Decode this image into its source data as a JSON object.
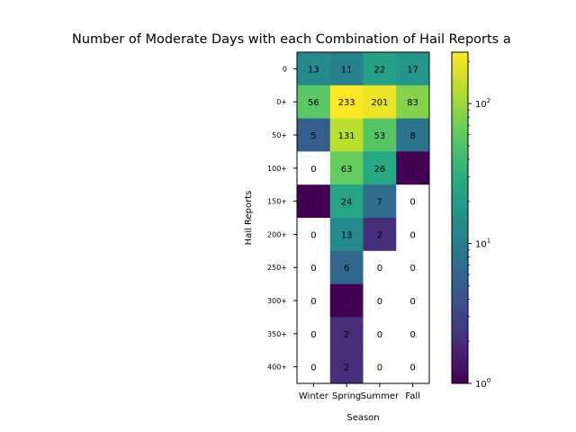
{
  "chart_data": {
    "type": "heatmap",
    "title": "Number of Moderate Days with each Combination of Hail Reports a",
    "xlabel": "Season",
    "ylabel": "Hail Reports",
    "x_categories": [
      "Winter",
      "Spring",
      "Summer",
      "Fall"
    ],
    "y_categories": [
      "0",
      "0+",
      "50+",
      "100+",
      "150+",
      "200+",
      "250+",
      "300+",
      "350+",
      "400+"
    ],
    "values": [
      [
        13,
        11,
        22,
        17
      ],
      [
        56,
        233,
        201,
        83
      ],
      [
        5,
        131,
        53,
        8
      ],
      [
        0,
        63,
        26,
        1
      ],
      [
        1,
        24,
        7,
        0
      ],
      [
        0,
        13,
        2,
        0
      ],
      [
        0,
        6,
        0,
        0
      ],
      [
        0,
        1,
        0,
        0
      ],
      [
        0,
        2,
        0,
        0
      ],
      [
        0,
        2,
        0,
        0
      ]
    ],
    "cell_labels": [
      [
        "13",
        "11",
        "22",
        "17"
      ],
      [
        "56",
        "233",
        "201",
        "83"
      ],
      [
        "5",
        "131",
        "53",
        "8"
      ],
      [
        "0",
        "63",
        "26",
        "1"
      ],
      [
        "1",
        "24",
        "7",
        "0"
      ],
      [
        "0",
        "13",
        "2",
        "0"
      ],
      [
        "0",
        "6",
        "0",
        "0"
      ],
      [
        "0",
        "1",
        "0",
        "0"
      ],
      [
        "0",
        "2",
        "0",
        "0"
      ],
      [
        "0",
        "2",
        "0",
        "0"
      ]
    ],
    "color_scale": "log",
    "colormap": "viridis",
    "zero_color": "#ffffff",
    "vmin": 1,
    "vmax": 233,
    "colorbar": {
      "ticks": [
        {
          "value": 1,
          "base": "10",
          "exp": "0"
        },
        {
          "value": 10,
          "base": "10",
          "exp": "1"
        },
        {
          "value": 100,
          "base": "10",
          "exp": "2"
        }
      ]
    }
  }
}
